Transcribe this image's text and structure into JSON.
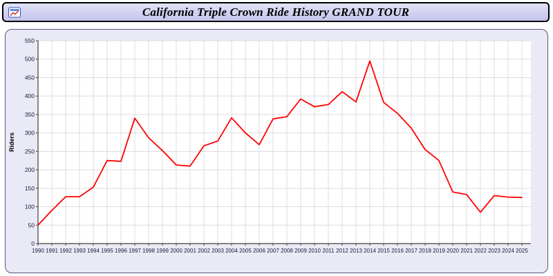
{
  "header": {
    "title": "California Triple Crown Ride History GRAND TOUR",
    "icon": "app-window-icon"
  },
  "chart_data": {
    "type": "line",
    "title": "California Triple Crown Ride History GRAND TOUR",
    "xlabel": "",
    "ylabel": "Riders",
    "ylim": [
      0,
      550
    ],
    "ytick_step": 50,
    "grid": true,
    "legend_position": "none",
    "plot_bg": "#ffffff",
    "panel_bg": "#eaeaf6",
    "grid_color": "#dcdcdc",
    "axis_color": "#404040",
    "tick_label_color": "#16163a",
    "x": [
      1990,
      1991,
      1992,
      1993,
      1994,
      1995,
      1996,
      1997,
      1998,
      1999,
      2000,
      2001,
      2002,
      2003,
      2004,
      2005,
      2006,
      2007,
      2008,
      2009,
      2010,
      2011,
      2012,
      2013,
      2014,
      2015,
      2016,
      2017,
      2018,
      2019,
      2020,
      2021,
      2022,
      2023,
      2024,
      2025
    ],
    "series": [
      {
        "name": "Riders",
        "color": "#ff0000",
        "values": [
          50,
          90,
          127,
          127,
          153,
          225,
          223,
          340,
          287,
          252,
          213,
          210,
          265,
          278,
          341,
          300,
          268,
          338,
          344,
          392,
          371,
          377,
          412,
          384,
          495,
          383,
          353,
          313,
          255,
          225,
          140,
          133,
          85,
          130,
          126,
          125
        ]
      }
    ]
  }
}
